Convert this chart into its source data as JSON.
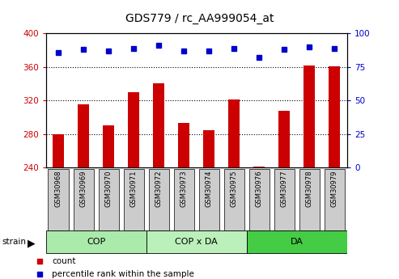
{
  "title": "GDS779 / rc_AA999054_at",
  "samples": [
    "GSM30968",
    "GSM30969",
    "GSM30970",
    "GSM30971",
    "GSM30972",
    "GSM30973",
    "GSM30974",
    "GSM30975",
    "GSM30976",
    "GSM30977",
    "GSM30978",
    "GSM30979"
  ],
  "counts": [
    280,
    315,
    290,
    330,
    340,
    293,
    284,
    321,
    241,
    308,
    362,
    361
  ],
  "percentiles": [
    86,
    88,
    87,
    89,
    91,
    87,
    87,
    89,
    82,
    88,
    90,
    89
  ],
  "groups": [
    {
      "label": "COP",
      "start": 0,
      "end": 4,
      "color": "#aaeaaa"
    },
    {
      "label": "COP x DA",
      "start": 4,
      "end": 8,
      "color": "#bbf0bb"
    },
    {
      "label": "DA",
      "start": 8,
      "end": 12,
      "color": "#44cc44"
    }
  ],
  "bar_color": "#cc0000",
  "dot_color": "#0000cc",
  "ymin": 240,
  "ymax": 400,
  "yticks_left": [
    240,
    280,
    320,
    360,
    400
  ],
  "yticks_right": [
    0,
    25,
    50,
    75,
    100
  ],
  "left_tick_color": "#cc0000",
  "right_tick_color": "#0000cc",
  "grid_color": "#000000",
  "bg_color": "#ffffff",
  "tick_bg": "#cccccc",
  "legend_items": [
    {
      "label": "count",
      "color": "#cc0000"
    },
    {
      "label": "percentile rank within the sample",
      "color": "#0000cc"
    }
  ]
}
